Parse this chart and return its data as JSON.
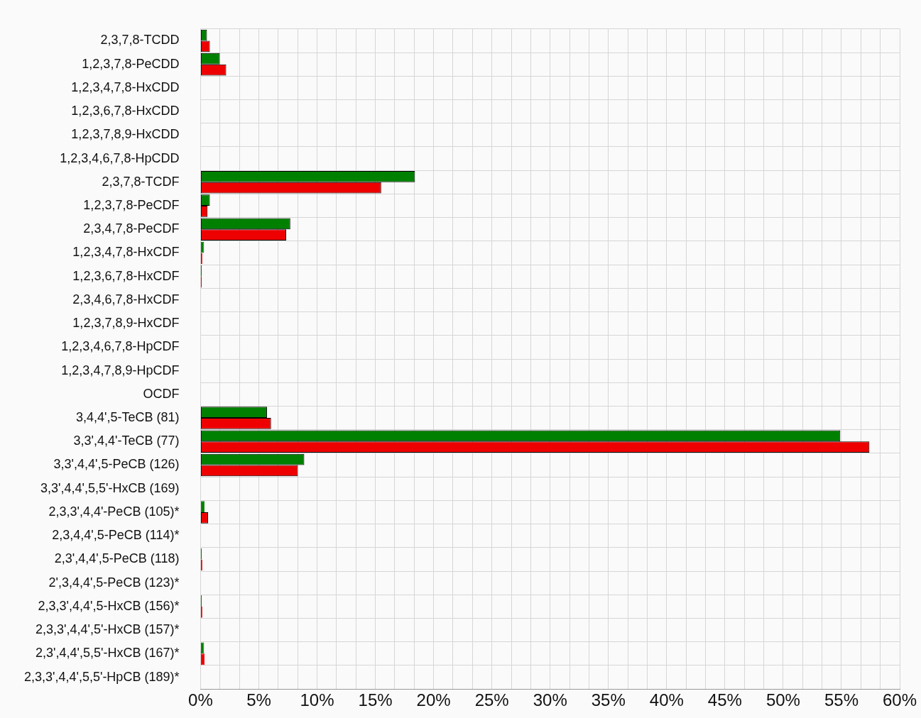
{
  "chart_data": {
    "type": "bar",
    "orientation": "horizontal",
    "categories": [
      "2,3,7,8-TCDD",
      "1,2,3,7,8-PeCDD",
      "1,2,3,4,7,8-HxCDD",
      "1,2,3,6,7,8-HxCDD",
      "1,2,3,7,8,9-HxCDD",
      "1,2,3,4,6,7,8-HpCDD",
      "2,3,7,8-TCDF",
      "1,2,3,7,8-PeCDF",
      "2,3,4,7,8-PeCDF",
      "1,2,3,4,7,8-HxCDF",
      "1,2,3,6,7,8-HxCDF",
      "2,3,4,6,7,8-HxCDF",
      "1,2,3,7,8,9-HxCDF",
      "1,2,3,4,6,7,8-HpCDF",
      "1,2,3,4,7,8,9-HpCDF",
      "OCDF",
      "3,4,4',5-TeCB (81)",
      "3,3',4,4'-TeCB (77)",
      "3,3',4,4',5-PeCB (126)",
      "3,3',4,4',5,5'-HxCB (169)",
      "2,3,3',4,4'-PeCB (105)*",
      "2,3,4,4',5-PeCB (114)*",
      "2,3',4,4',5-PeCB (118)",
      "2',3,4,4',5-PeCB (123)*",
      "2,3,3',4,4',5-HxCB (156)*",
      "2,3,3',4,4',5'-HxCB (157)*",
      "2,3',4,4',5,5'-HxCB (167)*",
      "2,3,3',4,4',5,5'-HpCB (189)*"
    ],
    "series": [
      {
        "color": "#008000",
        "values": [
          0.55,
          1.65,
          0,
          0,
          0,
          0,
          18.4,
          0.8,
          7.7,
          0.3,
          0.1,
          0,
          0,
          0,
          0,
          0,
          5.7,
          54.9,
          8.9,
          0,
          0.35,
          0,
          0.1,
          0,
          0.1,
          0,
          0.3,
          0
        ]
      },
      {
        "color": "#ee0000",
        "values": [
          0.8,
          2.2,
          0,
          0,
          0,
          0,
          15.5,
          0.6,
          7.35,
          0.15,
          0.1,
          0,
          0,
          0,
          0,
          0,
          6.05,
          57.4,
          8.35,
          0,
          0.65,
          0,
          0.15,
          0,
          0.15,
          0,
          0.35,
          0
        ]
      }
    ],
    "xlim": [
      0,
      60
    ],
    "xticks": [
      {
        "value": 0,
        "label": "0%"
      },
      {
        "value": 1.667,
        "label": null
      },
      {
        "value": 3.333,
        "label": null
      },
      {
        "value": 5,
        "label": "5%"
      },
      {
        "value": 6.667,
        "label": null
      },
      {
        "value": 8.333,
        "label": null
      },
      {
        "value": 10,
        "label": "10%"
      },
      {
        "value": 11.667,
        "label": null
      },
      {
        "value": 13.333,
        "label": null
      },
      {
        "value": 15,
        "label": "15%"
      },
      {
        "value": 16.667,
        "label": null
      },
      {
        "value": 18.333,
        "label": null
      },
      {
        "value": 20,
        "label": "20%"
      },
      {
        "value": 21.667,
        "label": null
      },
      {
        "value": 23.333,
        "label": null
      },
      {
        "value": 25,
        "label": "25%"
      },
      {
        "value": 26.667,
        "label": null
      },
      {
        "value": 28.333,
        "label": null
      },
      {
        "value": 30,
        "label": "30%"
      },
      {
        "value": 31.667,
        "label": null
      },
      {
        "value": 33.333,
        "label": null
      },
      {
        "value": 35,
        "label": "35%"
      },
      {
        "value": 36.667,
        "label": null
      },
      {
        "value": 38.333,
        "label": null
      },
      {
        "value": 40,
        "label": "40%"
      },
      {
        "value": 41.667,
        "label": null
      },
      {
        "value": 43.333,
        "label": null
      },
      {
        "value": 45,
        "label": "45%"
      },
      {
        "value": 46.667,
        "label": null
      },
      {
        "value": 48.333,
        "label": null
      },
      {
        "value": 50,
        "label": "50%"
      },
      {
        "value": 51.667,
        "label": null
      },
      {
        "value": 53.333,
        "label": null
      },
      {
        "value": 55,
        "label": "55%"
      },
      {
        "value": 56.667,
        "label": null
      },
      {
        "value": 58.333,
        "label": null
      },
      {
        "value": 60,
        "label": "60%"
      }
    ],
    "grid": true,
    "legend": false
  }
}
